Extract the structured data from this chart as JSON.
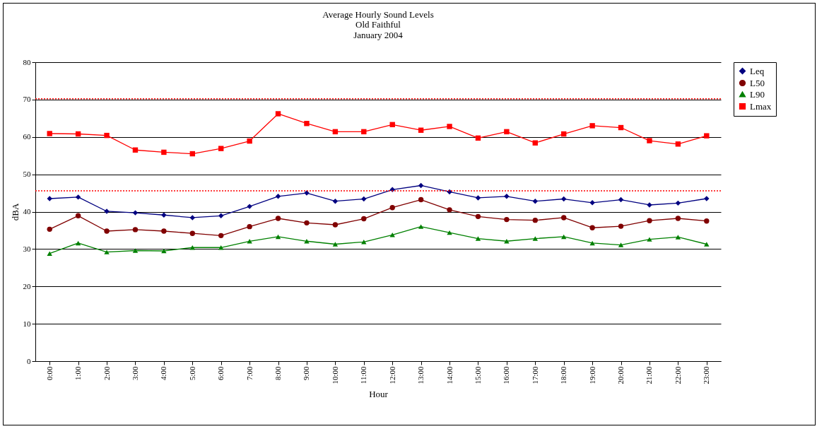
{
  "chart_data": {
    "type": "line",
    "title": "Average Hourly Sound Levels",
    "subtitle": "Old Faithful\nJanuary 2004",
    "xlabel": "Hour",
    "ylabel": "dBA",
    "categories": [
      "0:00",
      "1:00",
      "2:00",
      "3:00",
      "4:00",
      "5:00",
      "6:00",
      "7:00",
      "8:00",
      "9:00",
      "10:00",
      "11:00",
      "12:00",
      "13:00",
      "14:00",
      "15:00",
      "16:00",
      "17:00",
      "18:00",
      "19:00",
      "20:00",
      "21:00",
      "22:00",
      "23:00"
    ],
    "series": [
      {
        "name": "Leq",
        "color": "#000080",
        "marker": "diamond",
        "values": [
          43.5,
          43.9,
          40.1,
          39.7,
          39.1,
          38.4,
          38.9,
          41.4,
          44.1,
          45.0,
          42.8,
          43.4,
          45.9,
          47.0,
          45.3,
          43.7,
          44.1,
          42.8,
          43.4,
          42.4,
          43.2,
          41.8,
          42.3,
          43.5
        ]
      },
      {
        "name": "L50",
        "color": "#800000",
        "marker": "circle",
        "values": [
          35.3,
          38.9,
          34.8,
          35.2,
          34.8,
          34.2,
          33.6,
          36.0,
          38.2,
          37.0,
          36.5,
          38.1,
          41.1,
          43.2,
          40.5,
          38.7,
          37.9,
          37.7,
          38.4,
          35.7,
          36.1,
          37.6,
          38.2,
          37.5
        ]
      },
      {
        "name": "L90",
        "color": "#008000",
        "marker": "triangle",
        "values": [
          28.8,
          31.6,
          29.2,
          29.6,
          29.5,
          30.4,
          30.4,
          32.1,
          33.3,
          32.1,
          31.3,
          31.9,
          33.8,
          36.0,
          34.4,
          32.8,
          32.1,
          32.8,
          33.3,
          31.6,
          31.1,
          32.6,
          33.2,
          31.3
        ]
      },
      {
        "name": "Lmax",
        "color": "#ff0000",
        "marker": "square",
        "values": [
          60.9,
          60.8,
          60.4,
          56.5,
          55.9,
          55.5,
          56.9,
          58.9,
          66.2,
          63.6,
          61.4,
          61.4,
          63.3,
          61.8,
          62.8,
          59.7,
          61.4,
          58.4,
          60.8,
          63.0,
          62.5,
          59.0,
          58.1,
          60.3
        ]
      }
    ],
    "ylim": [
      0,
      80
    ],
    "yticks": [
      0,
      10,
      20,
      30,
      40,
      50,
      60,
      70,
      80
    ],
    "grid": "y",
    "legend": "right",
    "line_style": "solid",
    "ref_lines": [
      {
        "axis": "y",
        "value": 70.2,
        "color": "#ff0000",
        "line_style": "dotted"
      },
      {
        "axis": "y",
        "value": 45.6,
        "color": "#ff0000",
        "line_style": "dotted"
      }
    ]
  }
}
